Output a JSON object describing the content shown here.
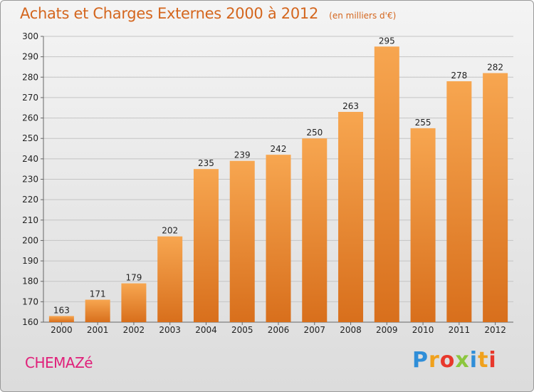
{
  "chart_data": {
    "type": "bar",
    "title": "Achats et Charges Externes 2000 à 2012",
    "unit": "(en milliers d'€)",
    "categories": [
      "2000",
      "2001",
      "2002",
      "2003",
      "2004",
      "2005",
      "2006",
      "2007",
      "2008",
      "2009",
      "2010",
      "2011",
      "2012"
    ],
    "values": [
      163,
      171,
      179,
      202,
      235,
      239,
      242,
      250,
      263,
      295,
      255,
      278,
      282
    ],
    "ylim": [
      160,
      300
    ],
    "yticks": [
      160,
      170,
      180,
      190,
      200,
      210,
      220,
      230,
      240,
      250,
      260,
      270,
      280,
      290,
      300
    ],
    "grid": true,
    "bar_color_top": "#f7a650",
    "bar_color_bottom": "#d86f1c"
  },
  "commune": "CHEMAZé",
  "brand": {
    "letters": [
      "P",
      "r",
      "o",
      "x",
      "i",
      "t",
      "i"
    ],
    "colors": [
      "#2f8ed8",
      "#f0a11c",
      "#e8382c",
      "#8cc63e",
      "#2f8ed8",
      "#f0a11c",
      "#e8382c"
    ]
  }
}
